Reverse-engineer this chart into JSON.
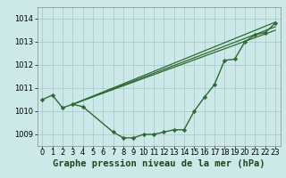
{
  "bg_color": "#cce8e8",
  "grid_color": "#aacccc",
  "line_color": "#2d6a2d",
  "marker_color": "#2d6a2d",
  "xlim": [
    -0.5,
    23.5
  ],
  "ylim": [
    1008.5,
    1014.5
  ],
  "yticks": [
    1009,
    1010,
    1011,
    1012,
    1013,
    1014
  ],
  "xticks": [
    0,
    1,
    2,
    3,
    4,
    5,
    6,
    7,
    8,
    9,
    10,
    11,
    12,
    13,
    14,
    15,
    16,
    17,
    18,
    19,
    20,
    21,
    22,
    23
  ],
  "series_main": {
    "x": [
      0,
      1,
      2,
      3,
      4,
      7,
      8,
      9,
      10,
      11,
      12,
      13,
      14,
      15,
      16,
      17,
      18,
      19,
      20,
      21,
      22,
      23
    ],
    "y": [
      1010.5,
      1010.7,
      1010.15,
      1010.3,
      1010.2,
      1009.1,
      1008.85,
      1008.85,
      1009.0,
      1009.0,
      1009.1,
      1009.2,
      1009.2,
      1010.0,
      1010.6,
      1011.15,
      1012.2,
      1012.25,
      1013.0,
      1013.3,
      1013.4,
      1013.8
    ]
  },
  "lines": [
    {
      "x": [
        3,
        23
      ],
      "y": [
        1010.3,
        1013.85
      ]
    },
    {
      "x": [
        3,
        23
      ],
      "y": [
        1010.3,
        1013.65
      ]
    },
    {
      "x": [
        3,
        23
      ],
      "y": [
        1010.3,
        1013.5
      ]
    }
  ],
  "xlabel": "Graphe pression niveau de la mer (hPa)",
  "tick_fontsize": 6,
  "label_fontsize": 7.5,
  "figsize": [
    3.2,
    2.0
  ],
  "dpi": 100
}
